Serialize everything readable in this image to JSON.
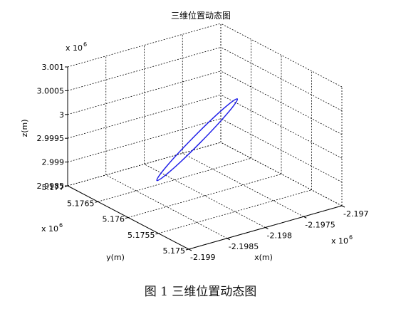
{
  "chart_data": {
    "type": "line",
    "title": "三维位置动态图",
    "xlabel": "x(m)",
    "ylabel": "y(m)",
    "zlabel": "z(m)",
    "x_ticks": [
      "-2.199",
      "-2.1985",
      "-2.198",
      "-2.1975",
      "-2.197"
    ],
    "y_ticks": [
      "5.175",
      "5.1755",
      "5.176",
      "5.1765",
      "5.177"
    ],
    "z_ticks": [
      "2.9985",
      "2.999",
      "2.9995",
      "3",
      "3.0005",
      "3.001"
    ],
    "x_exponent": "x 10^6",
    "y_exponent": "x 10^6",
    "z_exponent": "x 10^6",
    "xlim": [
      -2199000,
      -2197000
    ],
    "ylim": [
      5175000,
      5177000
    ],
    "zlim": [
      2998500,
      3001000
    ],
    "grid": true,
    "series": [
      {
        "color": "#1f1fe8",
        "shape": "closed elliptical loop",
        "points": [
          {
            "x": -2198420,
            "y": 5176260,
            "z": 2998840
          },
          {
            "x": -2197780,
            "y": 5175740,
            "z": 3000610
          }
        ]
      }
    ]
  },
  "caption": "图 1  三维位置动态图"
}
